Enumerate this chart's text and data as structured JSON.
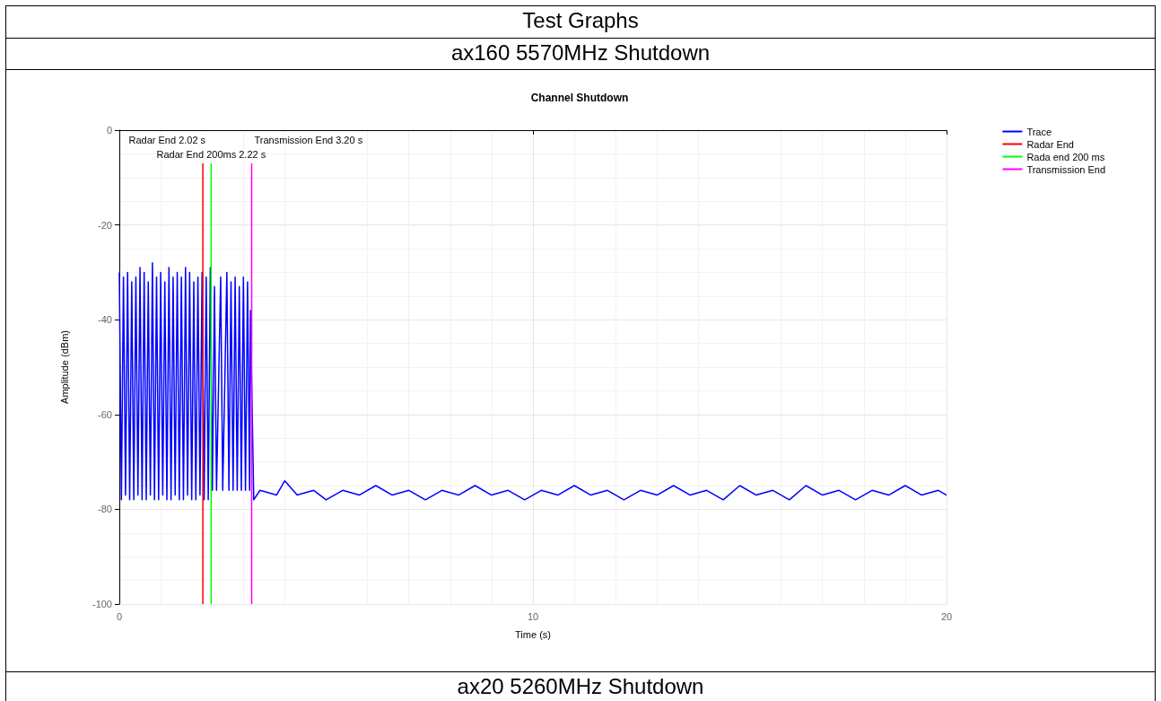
{
  "chart_data": {
    "type": "line",
    "title": "Channel Shutdown",
    "xlabel": "Time (s)",
    "ylabel": "Amplitude (dBm)",
    "annotations": [
      "Test Graphs",
      "ax160 5570MHz Shutdown",
      "ax20 5260MHz Shutdown",
      {
        "text": "Radar End 2.02 s",
        "x": 2.02,
        "y": -7
      },
      {
        "text": "Radar End 200ms 2.22 s",
        "x": 2.22,
        "y": -7
      },
      {
        "text": "Transmission End 3.20 s",
        "x": 3.2,
        "y": -7
      }
    ],
    "xlim": [
      0,
      20
    ],
    "xticks": [
      0,
      10,
      20
    ],
    "ylim": [
      -100,
      0
    ],
    "yticks": [
      -100,
      -80,
      -60,
      -40,
      -20,
      0
    ],
    "grid": true,
    "legend": "top right",
    "marker": "none",
    "line_style": "solid",
    "series": [
      {
        "name": "Trace",
        "color": "#0000ff",
        "x": [
          0,
          0.05,
          0.1,
          0.15,
          0.2,
          0.25,
          0.3,
          0.35,
          0.4,
          0.45,
          0.5,
          0.55,
          0.6,
          0.65,
          0.7,
          0.75,
          0.8,
          0.85,
          0.9,
          0.95,
          1.0,
          1.05,
          1.1,
          1.15,
          1.2,
          1.25,
          1.3,
          1.35,
          1.4,
          1.45,
          1.5,
          1.55,
          1.6,
          1.65,
          1.7,
          1.75,
          1.8,
          1.85,
          1.9,
          1.95,
          2.0,
          2.05,
          2.1,
          2.15,
          2.2,
          2.25,
          2.3,
          2.35,
          2.45,
          2.5,
          2.6,
          2.65,
          2.7,
          2.75,
          2.8,
          2.85,
          2.9,
          2.95,
          3.0,
          3.05,
          3.1,
          3.15,
          3.17,
          3.25,
          3.4,
          3.8,
          4.0,
          4.3,
          4.7,
          5.0,
          5.4,
          5.8,
          6.2,
          6.6,
          7.0,
          7.4,
          7.8,
          8.2,
          8.6,
          9.0,
          9.4,
          9.8,
          10.2,
          10.6,
          11.0,
          11.4,
          11.8,
          12.2,
          12.6,
          13.0,
          13.4,
          13.8,
          14.2,
          14.6,
          15.0,
          15.4,
          15.8,
          16.2,
          16.6,
          17.0,
          17.4,
          17.8,
          18.2,
          18.6,
          19.0,
          19.4,
          19.8,
          20.0
        ],
        "values": [
          -30,
          -78,
          -31,
          -77,
          -30,
          -78,
          -32,
          -78,
          -31,
          -77,
          -29,
          -78,
          -30,
          -78,
          -32,
          -77,
          -28,
          -78,
          -31,
          -78,
          -30,
          -77,
          -32,
          -78,
          -29,
          -78,
          -31,
          -77,
          -30,
          -78,
          -31,
          -78,
          -29,
          -77,
          -30,
          -78,
          -32,
          -78,
          -31,
          -77,
          -30,
          -78,
          -31,
          -78,
          -29,
          -76,
          -33,
          -76,
          -31,
          -76,
          -30,
          -76,
          -32,
          -76,
          -31,
          -76,
          -33,
          -76,
          -31,
          -76,
          -32,
          -76,
          -38,
          -78,
          -76,
          -77,
          -74,
          -77,
          -76,
          -78,
          -76,
          -77,
          -75,
          -77,
          -76,
          -78,
          -76,
          -77,
          -75,
          -77,
          -76,
          -78,
          -76,
          -77,
          -75,
          -77,
          -76,
          -78,
          -76,
          -77,
          -75,
          -77,
          -76,
          -78,
          -75,
          -77,
          -76,
          -78,
          -75,
          -77,
          -76,
          -78,
          -76,
          -77,
          -75,
          -77,
          -76,
          -77
        ]
      },
      {
        "name": "Radar End",
        "color": "#ff0000",
        "x": [
          2.02,
          2.02
        ],
        "values": [
          -100,
          -7
        ]
      },
      {
        "name": "Rada end 200 ms",
        "color": "#00ff00",
        "x": [
          2.22,
          2.22
        ],
        "values": [
          -100,
          -7
        ]
      },
      {
        "name": "Transmission End",
        "color": "#ff00ff",
        "x": [
          3.2,
          3.2
        ],
        "values": [
          -100,
          -7
        ]
      }
    ]
  }
}
